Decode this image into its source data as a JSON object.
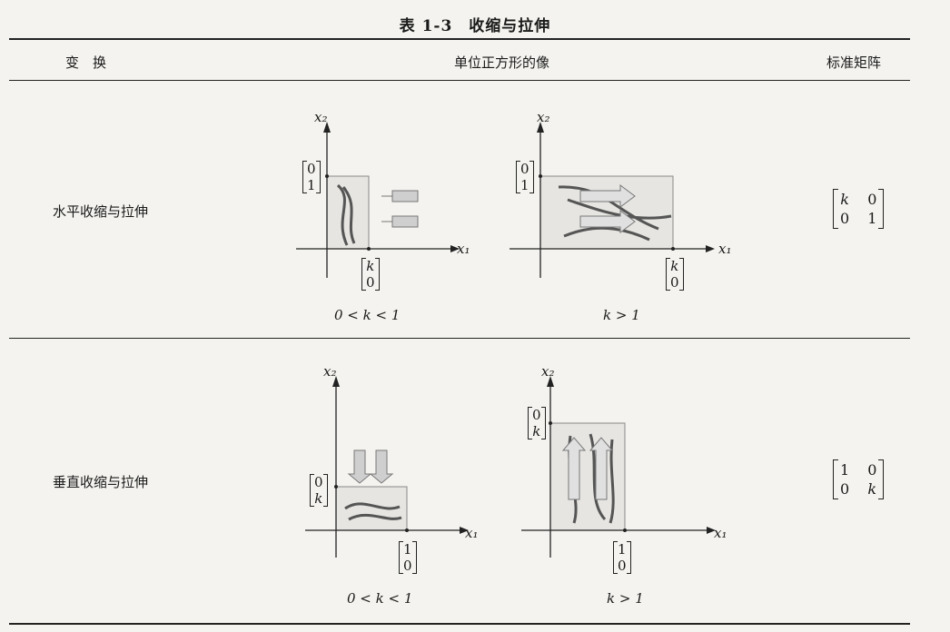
{
  "caption": "表 1-3　收缩与拉伸",
  "columns": {
    "transform": "变　换",
    "image": "单位正方形的像",
    "matrix": "标准矩阵"
  },
  "rows": [
    {
      "label": "水平收缩与拉伸",
      "matrix": [
        "k",
        "0",
        "0",
        "1"
      ],
      "panels": [
        {
          "condition": "0 < k < 1",
          "x1": "x₁",
          "x2": "x₂",
          "vec_y": [
            "0",
            "1"
          ],
          "vec_x": [
            "k",
            "0"
          ]
        },
        {
          "condition": "k > 1",
          "x1": "x₁",
          "x2": "x₂",
          "vec_y": [
            "0",
            "1"
          ],
          "vec_x": [
            "k",
            "0"
          ]
        }
      ]
    },
    {
      "label": "垂直收缩与拉伸",
      "matrix": [
        "1",
        "0",
        "0",
        "k"
      ],
      "panels": [
        {
          "condition": "0 < k < 1",
          "x1": "x₁",
          "x2": "x₂",
          "vec_y": [
            "0",
            "k"
          ],
          "vec_x": [
            "1",
            "0"
          ]
        },
        {
          "condition": "k > 1",
          "x1": "x₁",
          "x2": "x₂",
          "vec_y": [
            "0",
            "k"
          ],
          "vec_x": [
            "1",
            "0"
          ]
        }
      ]
    }
  ]
}
